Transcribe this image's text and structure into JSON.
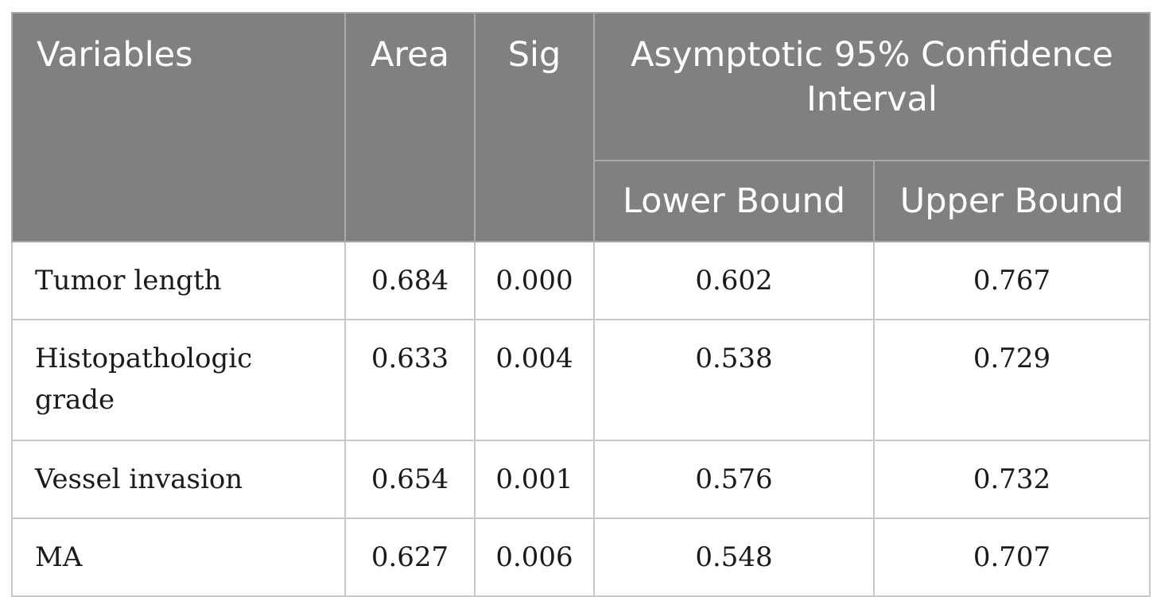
{
  "table": {
    "headers": {
      "variables": "Variables",
      "area": "Area",
      "sig": "Sig",
      "ci": "Asymptotic 95% Confidence Interval",
      "lower": "Lower Bound",
      "upper": "Upper Bound"
    },
    "rows": [
      {
        "variable": "Tumor length",
        "area": "0.684",
        "sig": "0.000",
        "lower": "0.602",
        "upper": "0.767"
      },
      {
        "variable": "Histopathologic grade",
        "area": "0.633",
        "sig": "0.004",
        "lower": "0.538",
        "upper": "0.729"
      },
      {
        "variable": "Vessel invasion",
        "area": "0.654",
        "sig": "0.001",
        "lower": "0.576",
        "upper": "0.732"
      },
      {
        "variable": "MA",
        "area": "0.627",
        "sig": "0.006",
        "lower": "0.548",
        "upper": "0.707"
      }
    ]
  },
  "colors": {
    "header_bg": "#808080",
    "header_text": "#ffffff",
    "grid": "#c8c8c8"
  }
}
